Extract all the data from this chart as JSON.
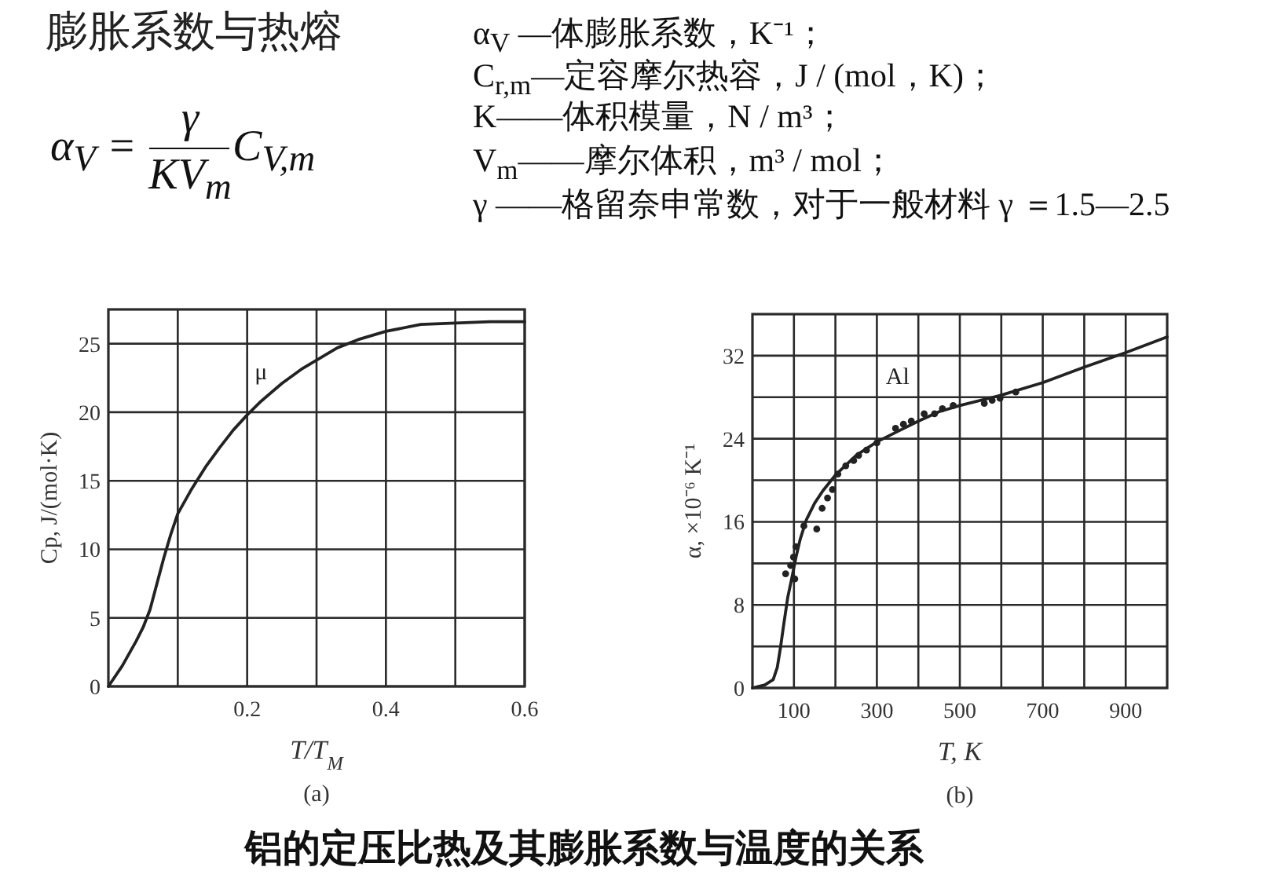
{
  "chart_data": [
    {
      "type": "other",
      "title": "膨胀系数与热熔",
      "annotations": [
        "α$_{V}$ =",
        "γ",
        "KV$_{m}$",
        "C$_{V,m}$",
        "α$_{V}$ —体膨胀系数，K⁻¹；",
        "C$_{r,m}$—定容摩尔热容，J / (mol，K)；",
        "K——体积模量，N / m³；",
        "V$_{m}$——摩尔体积，m³ / mol；",
        "γ ——格留奈申常数，对于一般材料 γ ＝1.5—2.5"
      ]
    },
    {
      "type": "line",
      "xlabel": "T/T$_{M}$",
      "ylabel": "Cp, J/(mol·K)",
      "xlim": [
        0,
        0.6
      ],
      "ylim": [
        0,
        27.5
      ],
      "xticks": [
        {
          "value": 0.1,
          "label": null
        },
        0.2,
        {
          "value": 0.3,
          "label": null
        },
        0.4,
        {
          "value": 0.5,
          "label": null
        },
        0.6
      ],
      "yticks": [
        0,
        5,
        10,
        15,
        20,
        25
      ],
      "grid": true,
      "series": [
        {
          "name": "μ",
          "color": "#222222",
          "x": [
            0,
            0.02,
            0.04,
            0.05,
            0.06,
            0.07,
            0.08,
            0.09,
            0.1,
            0.12,
            0.14,
            0.16,
            0.18,
            0.2,
            0.22,
            0.25,
            0.28,
            0.3,
            0.33,
            0.36,
            0.4,
            0.45,
            0.5,
            0.55,
            0.6
          ],
          "values": [
            0,
            1.5,
            3.3,
            4.3,
            5.6,
            7.5,
            9.4,
            11.1,
            12.6,
            14.4,
            16.0,
            17.4,
            18.7,
            19.8,
            20.8,
            22.1,
            23.2,
            23.8,
            24.7,
            25.3,
            25.9,
            26.4,
            26.5,
            26.6,
            26.6
          ]
        }
      ],
      "annotations": [
        "(a)"
      ]
    },
    {
      "type": "line",
      "xlabel": "T, K",
      "ylabel": "α, ×10⁻⁶ K⁻¹",
      "xlim": [
        0,
        1000
      ],
      "ylim": [
        0,
        36
      ],
      "xticks": [
        100,
        {
          "value": 200,
          "label": null
        },
        300,
        {
          "value": 400,
          "label": null
        },
        500,
        {
          "value": 600,
          "label": null
        },
        700,
        {
          "value": 800,
          "label": null
        },
        900
      ],
      "yticks": [
        0,
        {
          "value": 4,
          "label": null
        },
        8,
        {
          "value": 12,
          "label": null
        },
        16,
        {
          "value": 20,
          "label": null
        },
        24,
        {
          "value": 28,
          "label": null
        },
        32
      ],
      "grid": true,
      "series": [
        {
          "type": "line",
          "name": "Al",
          "color": "#222222",
          "x": [
            0,
            30,
            50,
            60,
            68,
            75,
            85,
            95,
            105,
            115,
            130,
            150,
            170,
            200,
            250,
            300,
            350,
            400,
            450,
            500,
            600,
            700,
            800,
            900,
            1000
          ],
          "values": [
            0,
            0.3,
            0.8,
            2.0,
            4.0,
            6.0,
            8.7,
            10.6,
            12.6,
            14.3,
            16.2,
            17.8,
            19.0,
            20.5,
            22.4,
            23.7,
            24.7,
            25.7,
            26.6,
            27.2,
            28.2,
            29.4,
            30.9,
            32.3,
            33.8
          ]
        },
        {
          "type": "scatter",
          "marker": "circle",
          "color": "#222222",
          "x": [
            80,
            92,
            99,
            105,
            102,
            124,
            155,
            168,
            181,
            193,
            206,
            225,
            244,
            256,
            275,
            300,
            345,
            364,
            383,
            414,
            439,
            458,
            484,
            559,
            578,
            597,
            635
          ],
          "values": [
            11.0,
            11.8,
            12.6,
            13.6,
            10.5,
            15.6,
            15.3,
            17.3,
            18.3,
            19.1,
            20.6,
            21.4,
            21.9,
            22.4,
            22.9,
            23.6,
            25.0,
            25.4,
            25.7,
            26.4,
            26.4,
            26.9,
            27.2,
            27.4,
            27.7,
            27.9,
            28.5
          ]
        }
      ],
      "annotations": [
        "(b)"
      ]
    },
    {
      "type": "other",
      "annotations": [
        "铝的定压比热及其膨胀系数与温度的关系"
      ]
    }
  ]
}
